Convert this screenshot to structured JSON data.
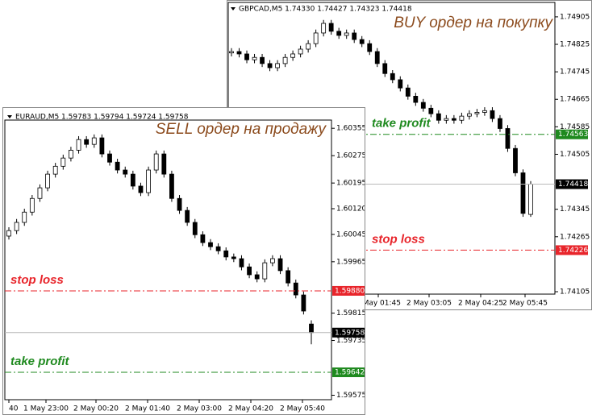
{
  "chart_data": [
    {
      "type": "candlestick",
      "header": "GBPCAD,M5  1.74330 1.74427 1.74323 1.74418",
      "note": "BUY ордер на покупку",
      "note_color": "#8b4a1c",
      "ylim": [
        1.74098,
        1.74947
      ],
      "yticks": [
        1.74905,
        1.74825,
        1.74745,
        1.74665,
        1.74585,
        1.74505,
        1.74345,
        1.74265,
        1.74105
      ],
      "xtick_labels": [
        "2 May 01:45",
        "2 May 03:05",
        "2 May 04:25",
        "2 May 05:45"
      ],
      "up_color": "#ffffff",
      "down_color": "#000000",
      "open": [
        1.748,
        1.74804,
        1.74797,
        1.7478,
        1.74787,
        1.74769,
        1.74757,
        1.74769,
        1.74787,
        1.74797,
        1.74811,
        1.74827,
        1.74858,
        1.74886,
        1.74863,
        1.74851,
        1.74858,
        1.74839,
        1.74827,
        1.74804,
        1.74769,
        1.7474,
        1.74722,
        1.74698,
        1.74674,
        1.74656,
        1.74639,
        1.74623,
        1.74604,
        1.74609,
        1.74604,
        1.74616,
        1.74623,
        1.74627,
        1.74632,
        1.74609,
        1.7458,
        1.74522,
        1.74451,
        1.7433
      ],
      "high": [
        1.74814,
        1.74814,
        1.74807,
        1.74797,
        1.74797,
        1.74779,
        1.74779,
        1.74797,
        1.74807,
        1.74821,
        1.74837,
        1.74868,
        1.74896,
        1.74896,
        1.74873,
        1.74868,
        1.74868,
        1.74849,
        1.74837,
        1.74814,
        1.74779,
        1.7475,
        1.74732,
        1.74708,
        1.74684,
        1.74666,
        1.74649,
        1.74633,
        1.74619,
        1.74619,
        1.74626,
        1.74633,
        1.74637,
        1.74642,
        1.74642,
        1.74619,
        1.7459,
        1.74532,
        1.74461,
        1.74427
      ],
      "low": [
        1.7479,
        1.74787,
        1.7477,
        1.7477,
        1.74759,
        1.74747,
        1.74747,
        1.74759,
        1.74777,
        1.74787,
        1.74801,
        1.74817,
        1.74848,
        1.74853,
        1.74841,
        1.74841,
        1.74829,
        1.74817,
        1.74794,
        1.74759,
        1.7473,
        1.74712,
        1.74688,
        1.74664,
        1.74646,
        1.74629,
        1.74613,
        1.74594,
        1.74594,
        1.74594,
        1.74594,
        1.74606,
        1.74613,
        1.74617,
        1.74599,
        1.7457,
        1.74512,
        1.74441,
        1.74323,
        1.74323
      ],
      "close": [
        1.74804,
        1.74797,
        1.7478,
        1.74787,
        1.74769,
        1.74757,
        1.74769,
        1.74787,
        1.74797,
        1.74811,
        1.74827,
        1.74858,
        1.74886,
        1.74863,
        1.74851,
        1.74858,
        1.74839,
        1.74827,
        1.74804,
        1.74769,
        1.7474,
        1.74722,
        1.74698,
        1.74674,
        1.74656,
        1.74639,
        1.74623,
        1.74604,
        1.74609,
        1.74604,
        1.74616,
        1.74623,
        1.74627,
        1.74632,
        1.74609,
        1.7458,
        1.74522,
        1.74451,
        1.74333,
        1.74418
      ],
      "levels": [
        {
          "name": "take profit",
          "value": 1.74563,
          "label": "1.74563",
          "color": "#1f8a1f"
        },
        {
          "value": 1.74418,
          "label": "1.74418",
          "color": "#000000"
        },
        {
          "name": "stop loss",
          "value": 1.74226,
          "label": "1.74226",
          "color": "#e8252b"
        }
      ]
    },
    {
      "type": "candlestick",
      "header": "EURAUD,M5  1.59783 1.59794 1.59724 1.59758",
      "note": "SELL ордер на продажу",
      "note_color": "#8b4a1c",
      "ylim": [
        1.59562,
        1.60379
      ],
      "yticks": [
        1.60355,
        1.60275,
        1.60195,
        {
          "value": 1.6012,
          "label": "1.60120"
        },
        1.60045,
        1.59965,
        1.59815,
        1.59735,
        1.59575
      ],
      "xtick_labels": [
        "40",
        "1 May 23:00",
        "2 May 00:20",
        "2 May 01:40",
        "2 May 03:00",
        "2 May 04:20",
        "2 May 05:40"
      ],
      "up_color": "#ffffff",
      "down_color": "#000000",
      "open": [
        1.6004,
        1.60056,
        1.6008,
        1.6011,
        1.6015,
        1.60181,
        1.60221,
        1.60244,
        1.60268,
        1.60291,
        1.60322,
        1.60308,
        1.60327,
        1.6028,
        1.60256,
        1.60233,
        1.60221,
        1.60186,
        1.60167,
        1.60233,
        1.6028,
        1.60221,
        1.6015,
        1.60115,
        1.6008,
        1.60044,
        1.60021,
        1.60009,
        1.59997,
        1.59979,
        1.59974,
        1.5995,
        1.59927,
        1.59915,
        1.59962,
        1.59974,
        1.59939,
        1.59903,
        1.59868,
        1.59783
      ],
      "high": [
        1.60066,
        1.6009,
        1.6012,
        1.6016,
        1.60191,
        1.60231,
        1.60254,
        1.60278,
        1.60301,
        1.60332,
        1.60332,
        1.60337,
        1.60337,
        1.6029,
        1.60266,
        1.60243,
        1.60231,
        1.60196,
        1.60243,
        1.6029,
        1.6029,
        1.60231,
        1.6016,
        1.60125,
        1.6009,
        1.60054,
        1.60031,
        1.60019,
        1.60007,
        1.59989,
        1.59984,
        1.5996,
        1.59937,
        1.59972,
        1.59984,
        1.59984,
        1.59949,
        1.59913,
        1.59878,
        1.59794
      ],
      "low": [
        1.6003,
        1.60046,
        1.6007,
        1.601,
        1.6014,
        1.60171,
        1.60211,
        1.60234,
        1.60258,
        1.60281,
        1.60298,
        1.60298,
        1.6027,
        1.60246,
        1.60223,
        1.60211,
        1.60176,
        1.60157,
        1.60157,
        1.60223,
        1.60211,
        1.6014,
        1.60105,
        1.6007,
        1.60034,
        1.60011,
        1.59999,
        1.59987,
        1.59969,
        1.59964,
        1.5994,
        1.59917,
        1.59905,
        1.59905,
        1.59952,
        1.59929,
        1.59893,
        1.59858,
        1.59811,
        1.59724
      ],
      "close": [
        1.60056,
        1.6008,
        1.6011,
        1.6015,
        1.60181,
        1.60221,
        1.60244,
        1.60268,
        1.60291,
        1.60322,
        1.60308,
        1.60327,
        1.6028,
        1.60256,
        1.60233,
        1.60221,
        1.60186,
        1.60167,
        1.60233,
        1.6028,
        1.60221,
        1.6015,
        1.60115,
        1.6008,
        1.60044,
        1.60021,
        1.60009,
        1.59997,
        1.59979,
        1.59974,
        1.5995,
        1.59927,
        1.59915,
        1.59962,
        1.59974,
        1.59939,
        1.59903,
        1.59868,
        1.59821,
        1.59758
      ],
      "levels": [
        {
          "name": "stop loss",
          "value": 1.5988,
          "label": "1.59880",
          "color": "#e8252b"
        },
        {
          "value": 1.59758,
          "label": "1.59758",
          "color": "#000000"
        },
        {
          "name": "take profit",
          "value": 1.59642,
          "label": "1.59642",
          "color": "#1f8a1f"
        }
      ]
    }
  ]
}
